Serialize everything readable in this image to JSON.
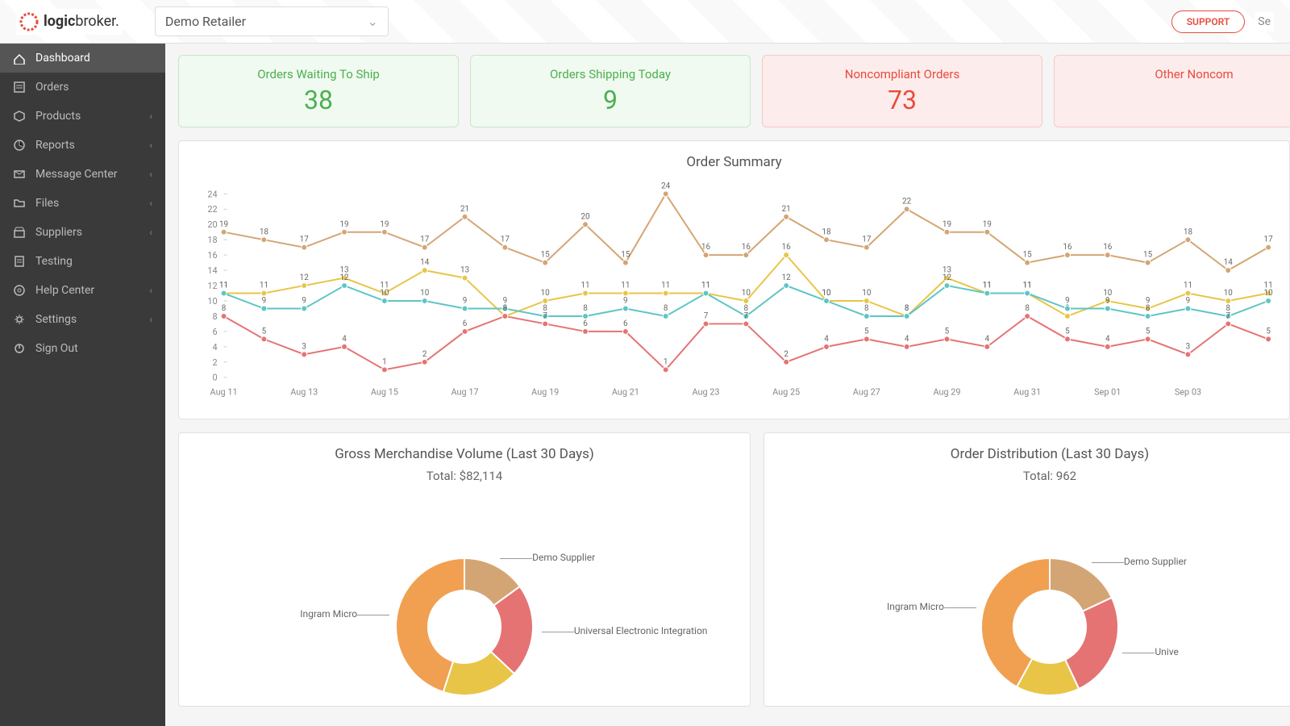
{
  "header": {
    "brand1": "logic",
    "brand2": "broker.",
    "retailer": "Demo Retailer",
    "support": "SUPPORT",
    "search": "Se"
  },
  "sidebar": [
    {
      "label": "Dashboard",
      "icon": "dash",
      "active": true,
      "exp": false
    },
    {
      "label": "Orders",
      "icon": "orders",
      "active": false,
      "exp": false
    },
    {
      "label": "Products",
      "icon": "box",
      "active": false,
      "exp": true
    },
    {
      "label": "Reports",
      "icon": "reports",
      "active": false,
      "exp": true
    },
    {
      "label": "Message Center",
      "icon": "mail",
      "active": false,
      "exp": true
    },
    {
      "label": "Files",
      "icon": "folder",
      "active": false,
      "exp": true
    },
    {
      "label": "Suppliers",
      "icon": "store",
      "active": false,
      "exp": true
    },
    {
      "label": "Testing",
      "icon": "test",
      "active": false,
      "exp": false
    },
    {
      "label": "Help Center",
      "icon": "help",
      "active": false,
      "exp": true
    },
    {
      "label": "Settings",
      "icon": "gear",
      "active": false,
      "exp": true
    },
    {
      "label": "Sign Out",
      "icon": "power",
      "active": false,
      "exp": false
    }
  ],
  "cards": [
    {
      "title": "Orders Waiting To Ship",
      "value": "38",
      "cls": "green"
    },
    {
      "title": "Orders Shipping Today",
      "value": "9",
      "cls": "green"
    },
    {
      "title": "Noncompliant Orders",
      "value": "73",
      "cls": "red"
    },
    {
      "title": "Other Noncom",
      "value": "",
      "cls": "red"
    }
  ],
  "lineChart": {
    "title": "Order Summary",
    "ylim": [
      0,
      24
    ],
    "ytick": 2,
    "xlabels": [
      "Aug 11",
      "Aug 13",
      "Aug 15",
      "Aug 17",
      "Aug 19",
      "Aug 21",
      "Aug 23",
      "Aug 25",
      "Aug 27",
      "Aug 29",
      "Aug 31",
      "Sep 01",
      "Sep 03"
    ],
    "colors": {
      "tan": "#d4a574",
      "teal": "#5ec5c5",
      "yellow": "#e8c547",
      "red": "#e57373"
    },
    "series": {
      "tan": [
        19,
        18,
        17,
        19,
        19,
        17,
        21,
        17,
        15,
        20,
        15,
        24,
        16,
        16,
        21,
        18,
        17,
        22,
        19,
        19,
        15,
        16,
        16,
        15,
        18,
        14,
        17
      ],
      "yellow": [
        11,
        11,
        12,
        13,
        11,
        14,
        13,
        8,
        10,
        11,
        11,
        11,
        11,
        10,
        16,
        10,
        10,
        8,
        13,
        11,
        11,
        8,
        10,
        9,
        11,
        10,
        11
      ],
      "teal": [
        11,
        9,
        9,
        12,
        10,
        10,
        9,
        9,
        8,
        8,
        9,
        8,
        11,
        8,
        12,
        10,
        8,
        8,
        12,
        11,
        11,
        9,
        9,
        8,
        9,
        8,
        10
      ],
      "red": [
        8,
        5,
        3,
        4,
        1,
        2,
        6,
        8,
        7,
        6,
        6,
        1,
        7,
        7,
        2,
        4,
        5,
        4,
        5,
        4,
        8,
        5,
        4,
        5,
        3,
        7,
        5
      ]
    }
  },
  "gmv": {
    "title": "Gross Merchandise Volume (Last 30 Days)",
    "sub": "Total: $82,114",
    "slices": [
      {
        "label": "Demo Supplier",
        "color": "#d4a574",
        "pct": 15
      },
      {
        "label": "Universal Electronic Integration",
        "color": "#e57373",
        "pct": 22
      },
      {
        "label": "",
        "color": "#e8c547",
        "pct": 18
      },
      {
        "label": "Ingram Micro",
        "color": "#f0a050",
        "pct": 45
      }
    ]
  },
  "dist": {
    "title": "Order Distribution (Last 30 Days)",
    "sub": "Total: 962",
    "slices": [
      {
        "label": "Demo Supplier",
        "color": "#d4a574",
        "pct": 18
      },
      {
        "label": "Unive",
        "color": "#e57373",
        "pct": 25
      },
      {
        "label": "",
        "color": "#e8c547",
        "pct": 15
      },
      {
        "label": "Ingram Micro",
        "color": "#f0a050",
        "pct": 42
      }
    ]
  }
}
